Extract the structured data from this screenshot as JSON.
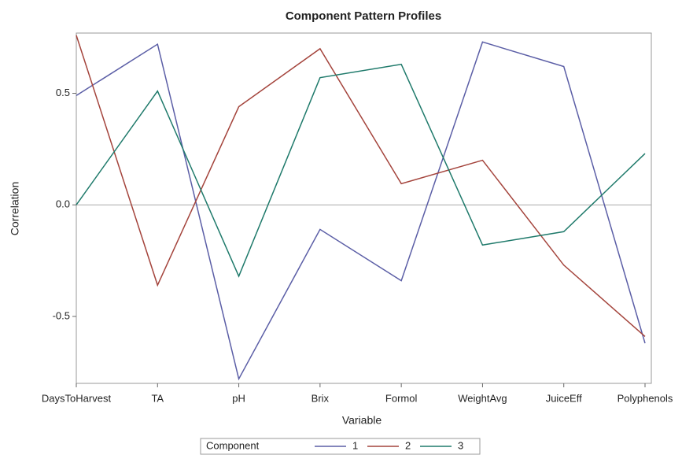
{
  "chart_data": {
    "type": "line",
    "title": "Component Pattern Profiles",
    "x_label": "Variable",
    "y_label": "Correlation",
    "categories": [
      "DaysToHarvest",
      "TA",
      "pH",
      "Brix",
      "Formol",
      "WeightAvg",
      "JuiceEff",
      "Polyphenols"
    ],
    "series": [
      {
        "name": "1",
        "color": "#5b5ea6",
        "values": [
          0.49,
          0.72,
          -0.78,
          -0.11,
          -0.34,
          0.73,
          0.62,
          -0.62
        ]
      },
      {
        "name": "2",
        "color": "#a4443c",
        "values": [
          0.76,
          -0.36,
          0.44,
          0.7,
          0.095,
          0.2,
          -0.27,
          -0.59
        ]
      },
      {
        "name": "3",
        "color": "#1f7a6b",
        "values": [
          0.0,
          0.51,
          -0.32,
          0.57,
          0.63,
          -0.18,
          -0.12,
          0.23
        ]
      }
    ],
    "ylim": [
      -0.8,
      0.77
    ],
    "yticks": [
      {
        "value": -0.5,
        "label": "-0.5"
      },
      {
        "value": 0,
        "label": "0.0"
      },
      {
        "value": 0.5,
        "label": "0.5"
      }
    ],
    "reference_line": 0,
    "legend_title": "Component",
    "legend_position": "bottom"
  }
}
